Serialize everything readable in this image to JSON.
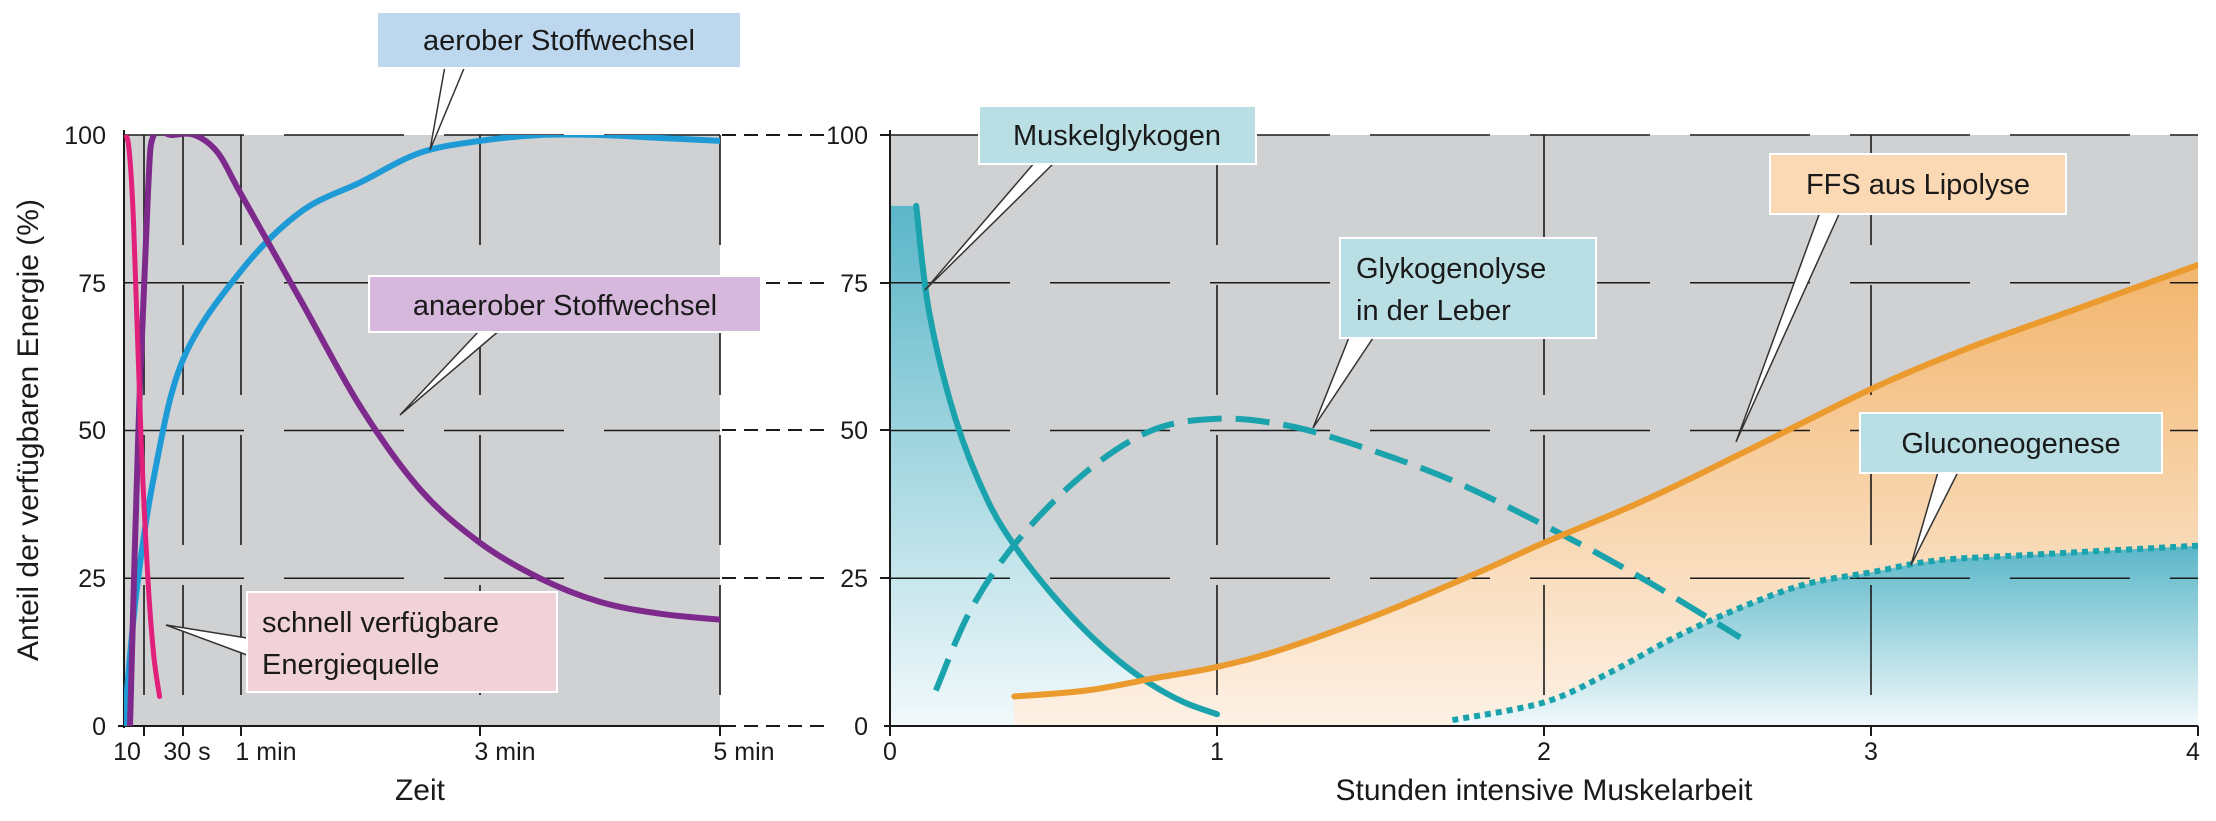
{
  "chart_data": [
    {
      "type": "line",
      "xlabel": "Zeit",
      "ylabel": "Anteil der verfügbaren Energie (%)",
      "ylim": [
        0,
        100
      ],
      "x_tick_labels": [
        "10",
        "30 s",
        "1 min",
        "3 min",
        "5 min"
      ],
      "y_tick_labels": [
        "0",
        "25",
        "50",
        "75",
        "100"
      ],
      "grid": true,
      "series": [
        {
          "name": "aerober Stoffwechsel",
          "color": "#1e9bd6",
          "values": [
            [
              0,
              0
            ],
            [
              0.1,
              22
            ],
            [
              0.25,
              42
            ],
            [
              0.5,
              62
            ],
            [
              1,
              77
            ],
            [
              1.5,
              87
            ],
            [
              2,
              92
            ],
            [
              2.5,
              97
            ],
            [
              3,
              99
            ],
            [
              3.5,
              100
            ],
            [
              4,
              100
            ],
            [
              4.5,
              99.5
            ],
            [
              5,
              99
            ]
          ]
        },
        {
          "name": "anaerober Stoffwechsel",
          "color": "#7d2a8c",
          "values": [
            [
              0.05,
              0
            ],
            [
              0.12,
              50
            ],
            [
              0.2,
              90
            ],
            [
              0.25,
              100
            ],
            [
              0.4,
              100
            ],
            [
              0.6,
              100
            ],
            [
              0.8,
              97
            ],
            [
              1,
              90
            ],
            [
              1.5,
              72
            ],
            [
              2,
              54
            ],
            [
              2.5,
              40
            ],
            [
              3,
              31
            ],
            [
              3.5,
              25
            ],
            [
              4,
              21
            ],
            [
              4.5,
              19
            ],
            [
              5,
              18
            ]
          ]
        },
        {
          "name": "schnell verfügbare Energiequelle",
          "color": "#e0207a",
          "values": [
            [
              0,
              100
            ],
            [
              0.04,
              98
            ],
            [
              0.08,
              85
            ],
            [
              0.14,
              50
            ],
            [
              0.2,
              25
            ],
            [
              0.25,
              12
            ],
            [
              0.3,
              5
            ]
          ]
        }
      ],
      "callouts": [
        "aerober Stoffwechsel",
        "anaerober Stoffwechsel",
        "schnell verfügbare",
        "Energiequelle"
      ]
    },
    {
      "type": "area",
      "xlabel": "Stunden intensive Muskelarbeit",
      "ylabel": "",
      "xlim": [
        0,
        4
      ],
      "ylim": [
        0,
        100
      ],
      "x_tick_labels": [
        "0",
        "1",
        "2",
        "3",
        "4"
      ],
      "y_tick_labels": [
        "0",
        "25",
        "50",
        "75",
        "100"
      ],
      "grid": true,
      "series": [
        {
          "name": "Muskelglykogen",
          "color": "#1aa3ad",
          "style": "solid",
          "values": [
            [
              0.08,
              88
            ],
            [
              0.12,
              70
            ],
            [
              0.2,
              52
            ],
            [
              0.3,
              38
            ],
            [
              0.4,
              29
            ],
            [
              0.5,
              22
            ],
            [
              0.6,
              16
            ],
            [
              0.7,
              11
            ],
            [
              0.8,
              7
            ],
            [
              0.9,
              4
            ],
            [
              1,
              2
            ]
          ]
        },
        {
          "name": "Glykogenolyse in der Leber",
          "color": "#1aa3ad",
          "style": "dashed",
          "values": [
            [
              0.14,
              6
            ],
            [
              0.25,
              20
            ],
            [
              0.4,
              32
            ],
            [
              0.6,
              43
            ],
            [
              0.8,
              50
            ],
            [
              1,
              52
            ],
            [
              1.2,
              51
            ],
            [
              1.4,
              48
            ],
            [
              1.7,
              42
            ],
            [
              2,
              34
            ],
            [
              2.3,
              25
            ],
            [
              2.6,
              15
            ]
          ]
        },
        {
          "name": "FFS aus Lipolyse",
          "color": "#eb9a2d",
          "style": "solid",
          "values": [
            [
              0.38,
              5
            ],
            [
              0.6,
              6
            ],
            [
              0.8,
              8
            ],
            [
              1,
              10
            ],
            [
              1.2,
              13
            ],
            [
              1.5,
              19
            ],
            [
              1.8,
              26
            ],
            [
              2,
              31
            ],
            [
              2.3,
              38
            ],
            [
              2.6,
              46
            ],
            [
              3,
              57
            ],
            [
              3.3,
              64
            ],
            [
              3.6,
              70
            ],
            [
              4,
              78
            ]
          ]
        },
        {
          "name": "Gluconeogenese",
          "color": "#1aa3ad",
          "style": "dotted",
          "values": [
            [
              1.72,
              1
            ],
            [
              2,
              4
            ],
            [
              2.2,
              9
            ],
            [
              2.4,
              15
            ],
            [
              2.6,
              20
            ],
            [
              2.8,
              24
            ],
            [
              3,
              26
            ],
            [
              3.2,
              28
            ],
            [
              3.5,
              29
            ],
            [
              4,
              30.5
            ]
          ]
        }
      ],
      "callouts": [
        "Muskelglykogen",
        "Glykogenolyse",
        "in der Leber",
        "FFS aus Lipolyse",
        "Gluconeogenese"
      ]
    }
  ]
}
